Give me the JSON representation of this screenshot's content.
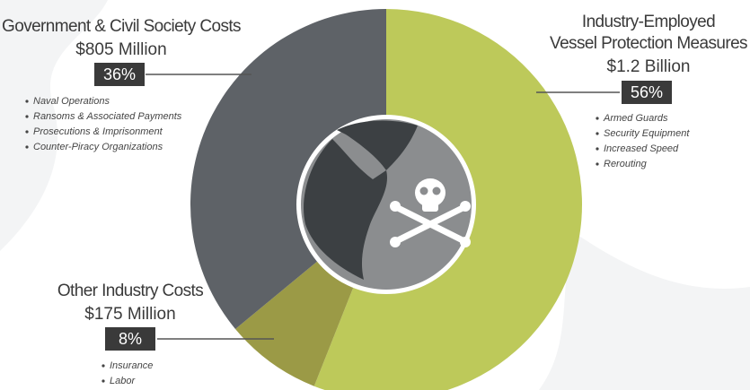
{
  "chart_data": {
    "type": "pie",
    "categories": [
      [
        "Industry-Employed",
        "Vessel Protection Measures"
      ],
      [
        "Other Industry Costs"
      ],
      [
        "Government & Civil Society Costs"
      ]
    ],
    "amounts": [
      "$1.2 Billion",
      "$175 Million",
      "$805 Million"
    ],
    "values": [
      56,
      8,
      36
    ],
    "value_labels": [
      "56%",
      "8%",
      "36%"
    ],
    "colors": [
      "#bdc95a",
      "#9b9a46",
      "#5e6267"
    ],
    "details": [
      [
        "Armed Guards",
        "Security Equipment",
        "Increased Speed",
        "Rerouting"
      ],
      [
        "Insurance",
        "Labor"
      ],
      [
        "Naval Operations",
        "Ransoms & Associated Payments",
        "Prosecutions & Imprisonment",
        "Counter-Piracy Organizations"
      ]
    ]
  }
}
